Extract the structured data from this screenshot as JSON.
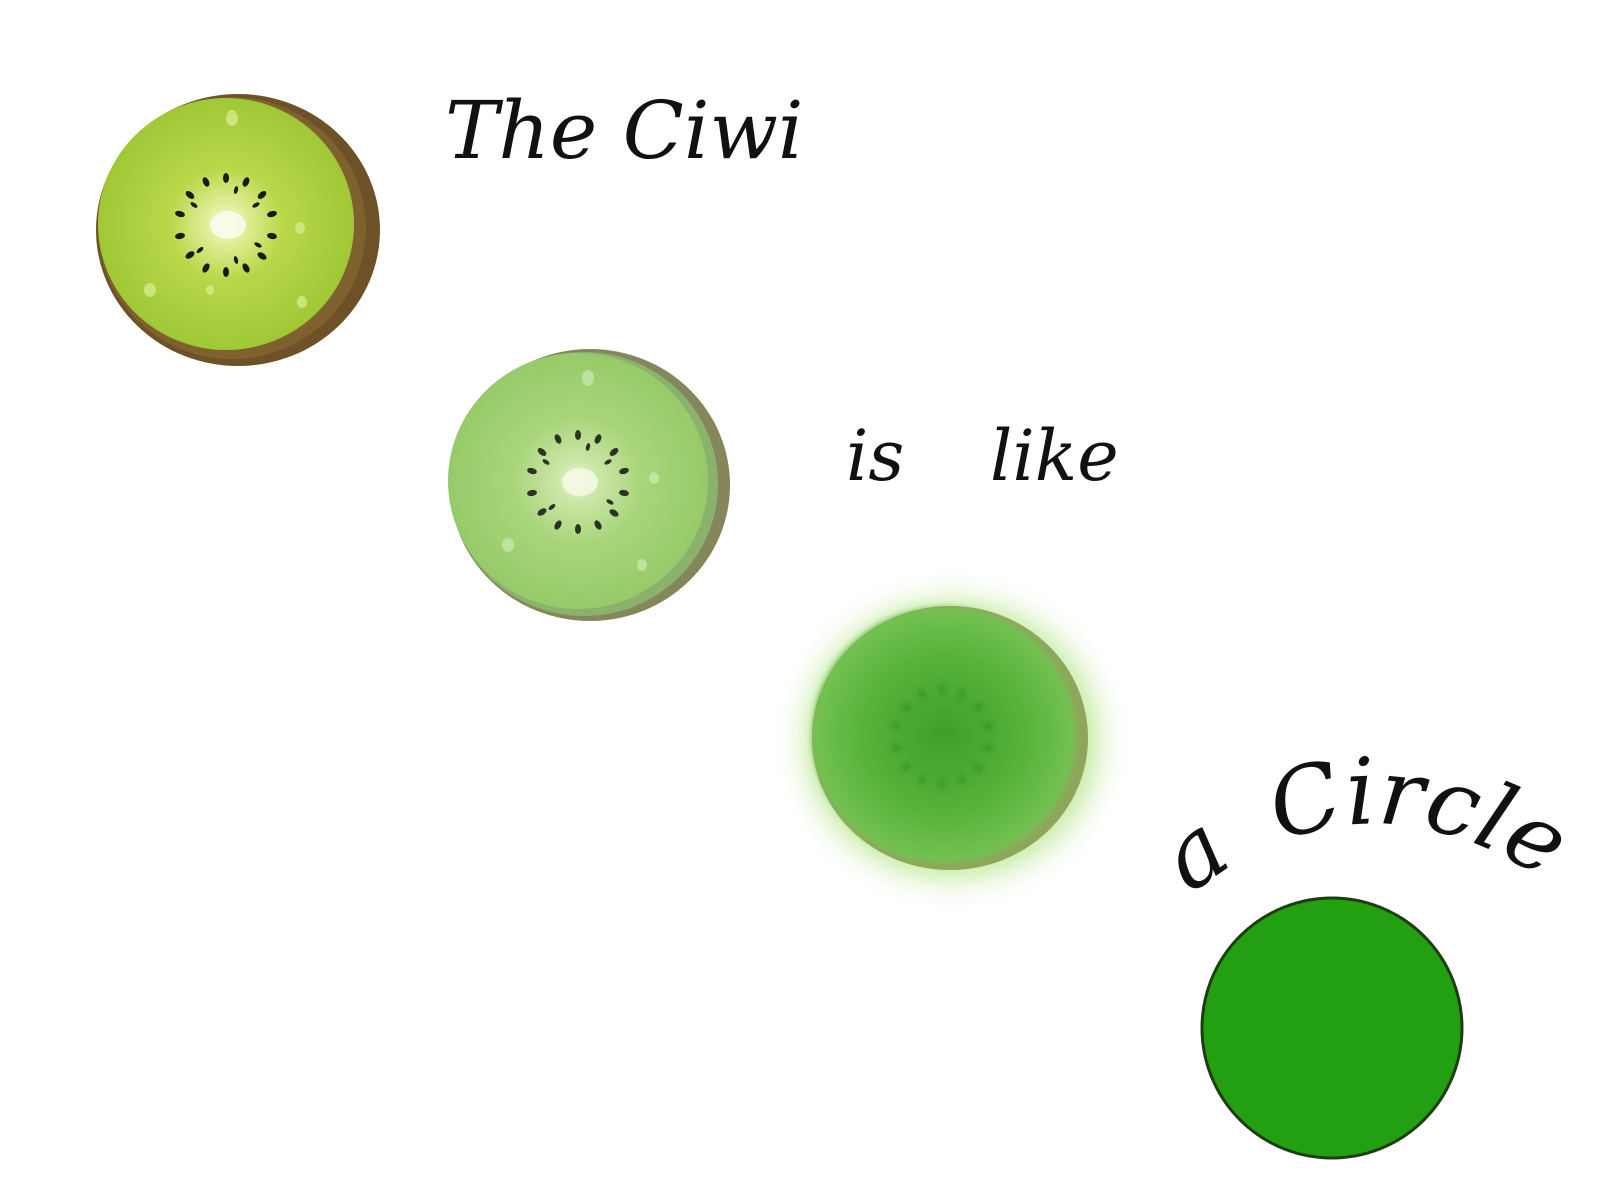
{
  "words": {
    "title": "The Ciwi",
    "is": "is",
    "like": "like",
    "a": "a",
    "circle": "Circle"
  },
  "colors": {
    "background": "#ffffff",
    "text": "#111111",
    "kiwi1_flesh": "#a9cf3a",
    "kiwi1_skin": "#7a5a2a",
    "kiwi2_flesh": "#9fd06a",
    "kiwi2_skin": "#8a8a55",
    "kiwi3_flesh": "#5fb83a",
    "kiwi3_glow": "#b8e68a",
    "circle_fill": "#22a012",
    "circle_stroke": "#1e3d12"
  },
  "icons": [
    "kiwi-slice",
    "kiwi-slice-faded",
    "kiwi-slice-blurred",
    "green-circle"
  ]
}
